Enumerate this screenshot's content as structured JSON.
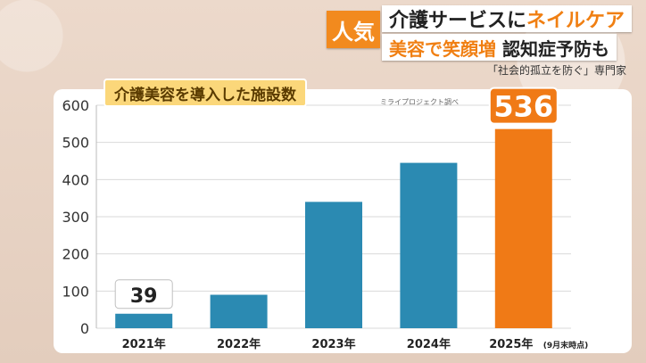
{
  "header": {
    "tag": "人気",
    "caption1_pre": "介護サービスに",
    "caption1_hl": "ネイルケア",
    "caption2_hl": "美容で笑顔増",
    "caption2_post": "認知症予防も",
    "caption3": "「社会的孤立を防ぐ」専門家"
  },
  "colors": {
    "bar": "#2b8ab2",
    "highlight": "#f07a16",
    "accent": "#f28a1e"
  },
  "chart_data": {
    "type": "bar",
    "title": "介護美容を導入した施設数",
    "source": "ミライプロジェクト調べ",
    "categories": [
      "2021年",
      "2022年",
      "2023年",
      "2024年",
      "2025年"
    ],
    "category_notes": [
      "",
      "",
      "",
      "",
      "(9月末時点)"
    ],
    "values": [
      39,
      90,
      340,
      445,
      536
    ],
    "highlight_index": 4,
    "data_labels": [
      {
        "index": 0,
        "text": "39"
      },
      {
        "index": 4,
        "text": "536"
      }
    ],
    "ylim": [
      0,
      600
    ],
    "yticks": [
      0,
      100,
      200,
      300,
      400,
      500,
      600
    ],
    "xlabel": "",
    "ylabel": "",
    "grid": true
  }
}
